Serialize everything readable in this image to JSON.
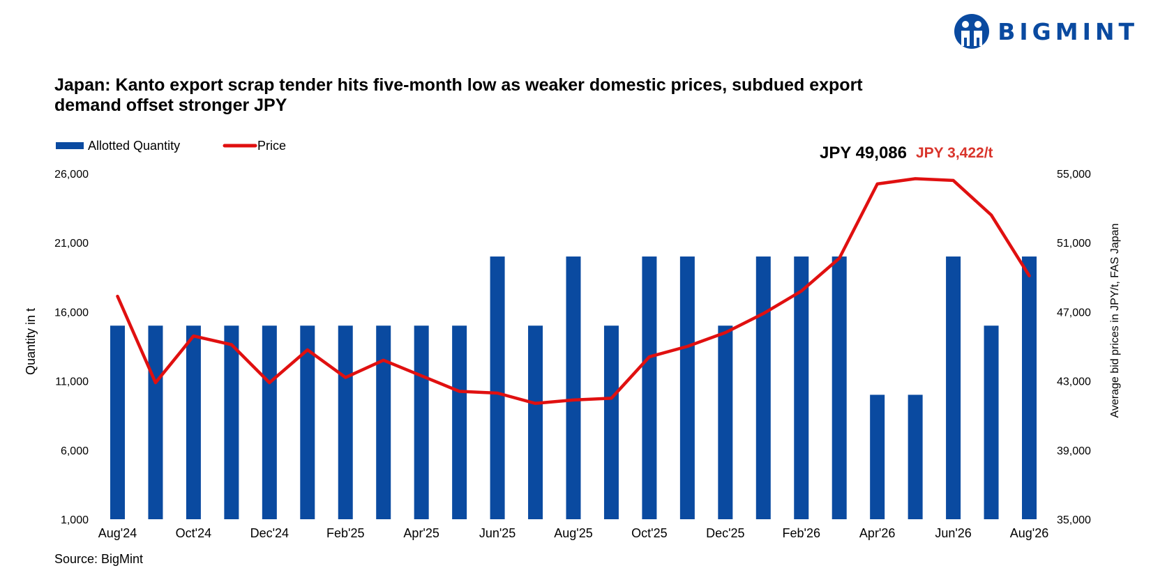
{
  "brand": {
    "name": "BIGMINT",
    "color": "#0a4aa0"
  },
  "chart_data": {
    "type": "bar",
    "title": "Japan: Kanto export scrap tender hits five-month low as weaker domestic prices, subdued export demand offset stronger JPY",
    "categories": [
      "Aug'24",
      "Sep'24",
      "Oct'24",
      "Nov'24",
      "Dec'24",
      "Jan'25",
      "Feb'25",
      "Mar'25",
      "Apr'25",
      "May'25",
      "Jun'25",
      "Jul'25",
      "Aug'25",
      "Sep'25",
      "Oct'25",
      "Nov'25",
      "Dec'25",
      "Jan'26",
      "Feb'26",
      "Mar'26",
      "Apr'26",
      "May'26",
      "Jun'26",
      "Jul'26",
      "Aug'26"
    ],
    "x_tick_labels": [
      "Aug'24",
      "Oct'24",
      "Dec'24",
      "Feb'25",
      "Apr'25",
      "Jun'25",
      "Aug'25",
      "Oct'25",
      "Dec'25",
      "Feb'26",
      "Apr'26",
      "Jun'26",
      "Aug'26"
    ],
    "series": [
      {
        "name": "Allotted Quantity",
        "type": "bar",
        "axis": "left",
        "color": "#0a4aa0",
        "values": [
          15000,
          15000,
          15000,
          15000,
          15000,
          15000,
          15000,
          15000,
          15000,
          15000,
          20000,
          15000,
          20000,
          15000,
          20000,
          20000,
          15000,
          20000,
          20000,
          20000,
          10000,
          10000,
          20000,
          15000,
          20000
        ]
      },
      {
        "name": "Price",
        "type": "line",
        "axis": "right",
        "color": "#e01010",
        "values": [
          47900,
          42900,
          45600,
          45100,
          42900,
          44800,
          43200,
          44200,
          43300,
          42400,
          42300,
          41700,
          41900,
          42000,
          44400,
          45000,
          45800,
          46900,
          48200,
          50100,
          54400,
          54700,
          54600,
          52600,
          49086
        ]
      }
    ],
    "ylabel": "Quantity in t",
    "y2label": "Average bid prices in JPY/t, FAS Japan",
    "ylim": [
      1000,
      26000
    ],
    "y2lim": [
      35000,
      55000
    ],
    "yticks": [
      "1,000",
      "6,000",
      "11,000",
      "16,000",
      "21,000",
      "26,000"
    ],
    "y2ticks": [
      "35,000",
      "39,000",
      "43,000",
      "47,000",
      "51,000",
      "55,000"
    ],
    "grid": false,
    "legend_position": "top-left",
    "annotations": [
      {
        "text": "JPY 49,086",
        "color": "#000000"
      },
      {
        "text": "JPY 3,422/t",
        "color": "#d9342b"
      }
    ]
  },
  "source": "Source: BigMint"
}
